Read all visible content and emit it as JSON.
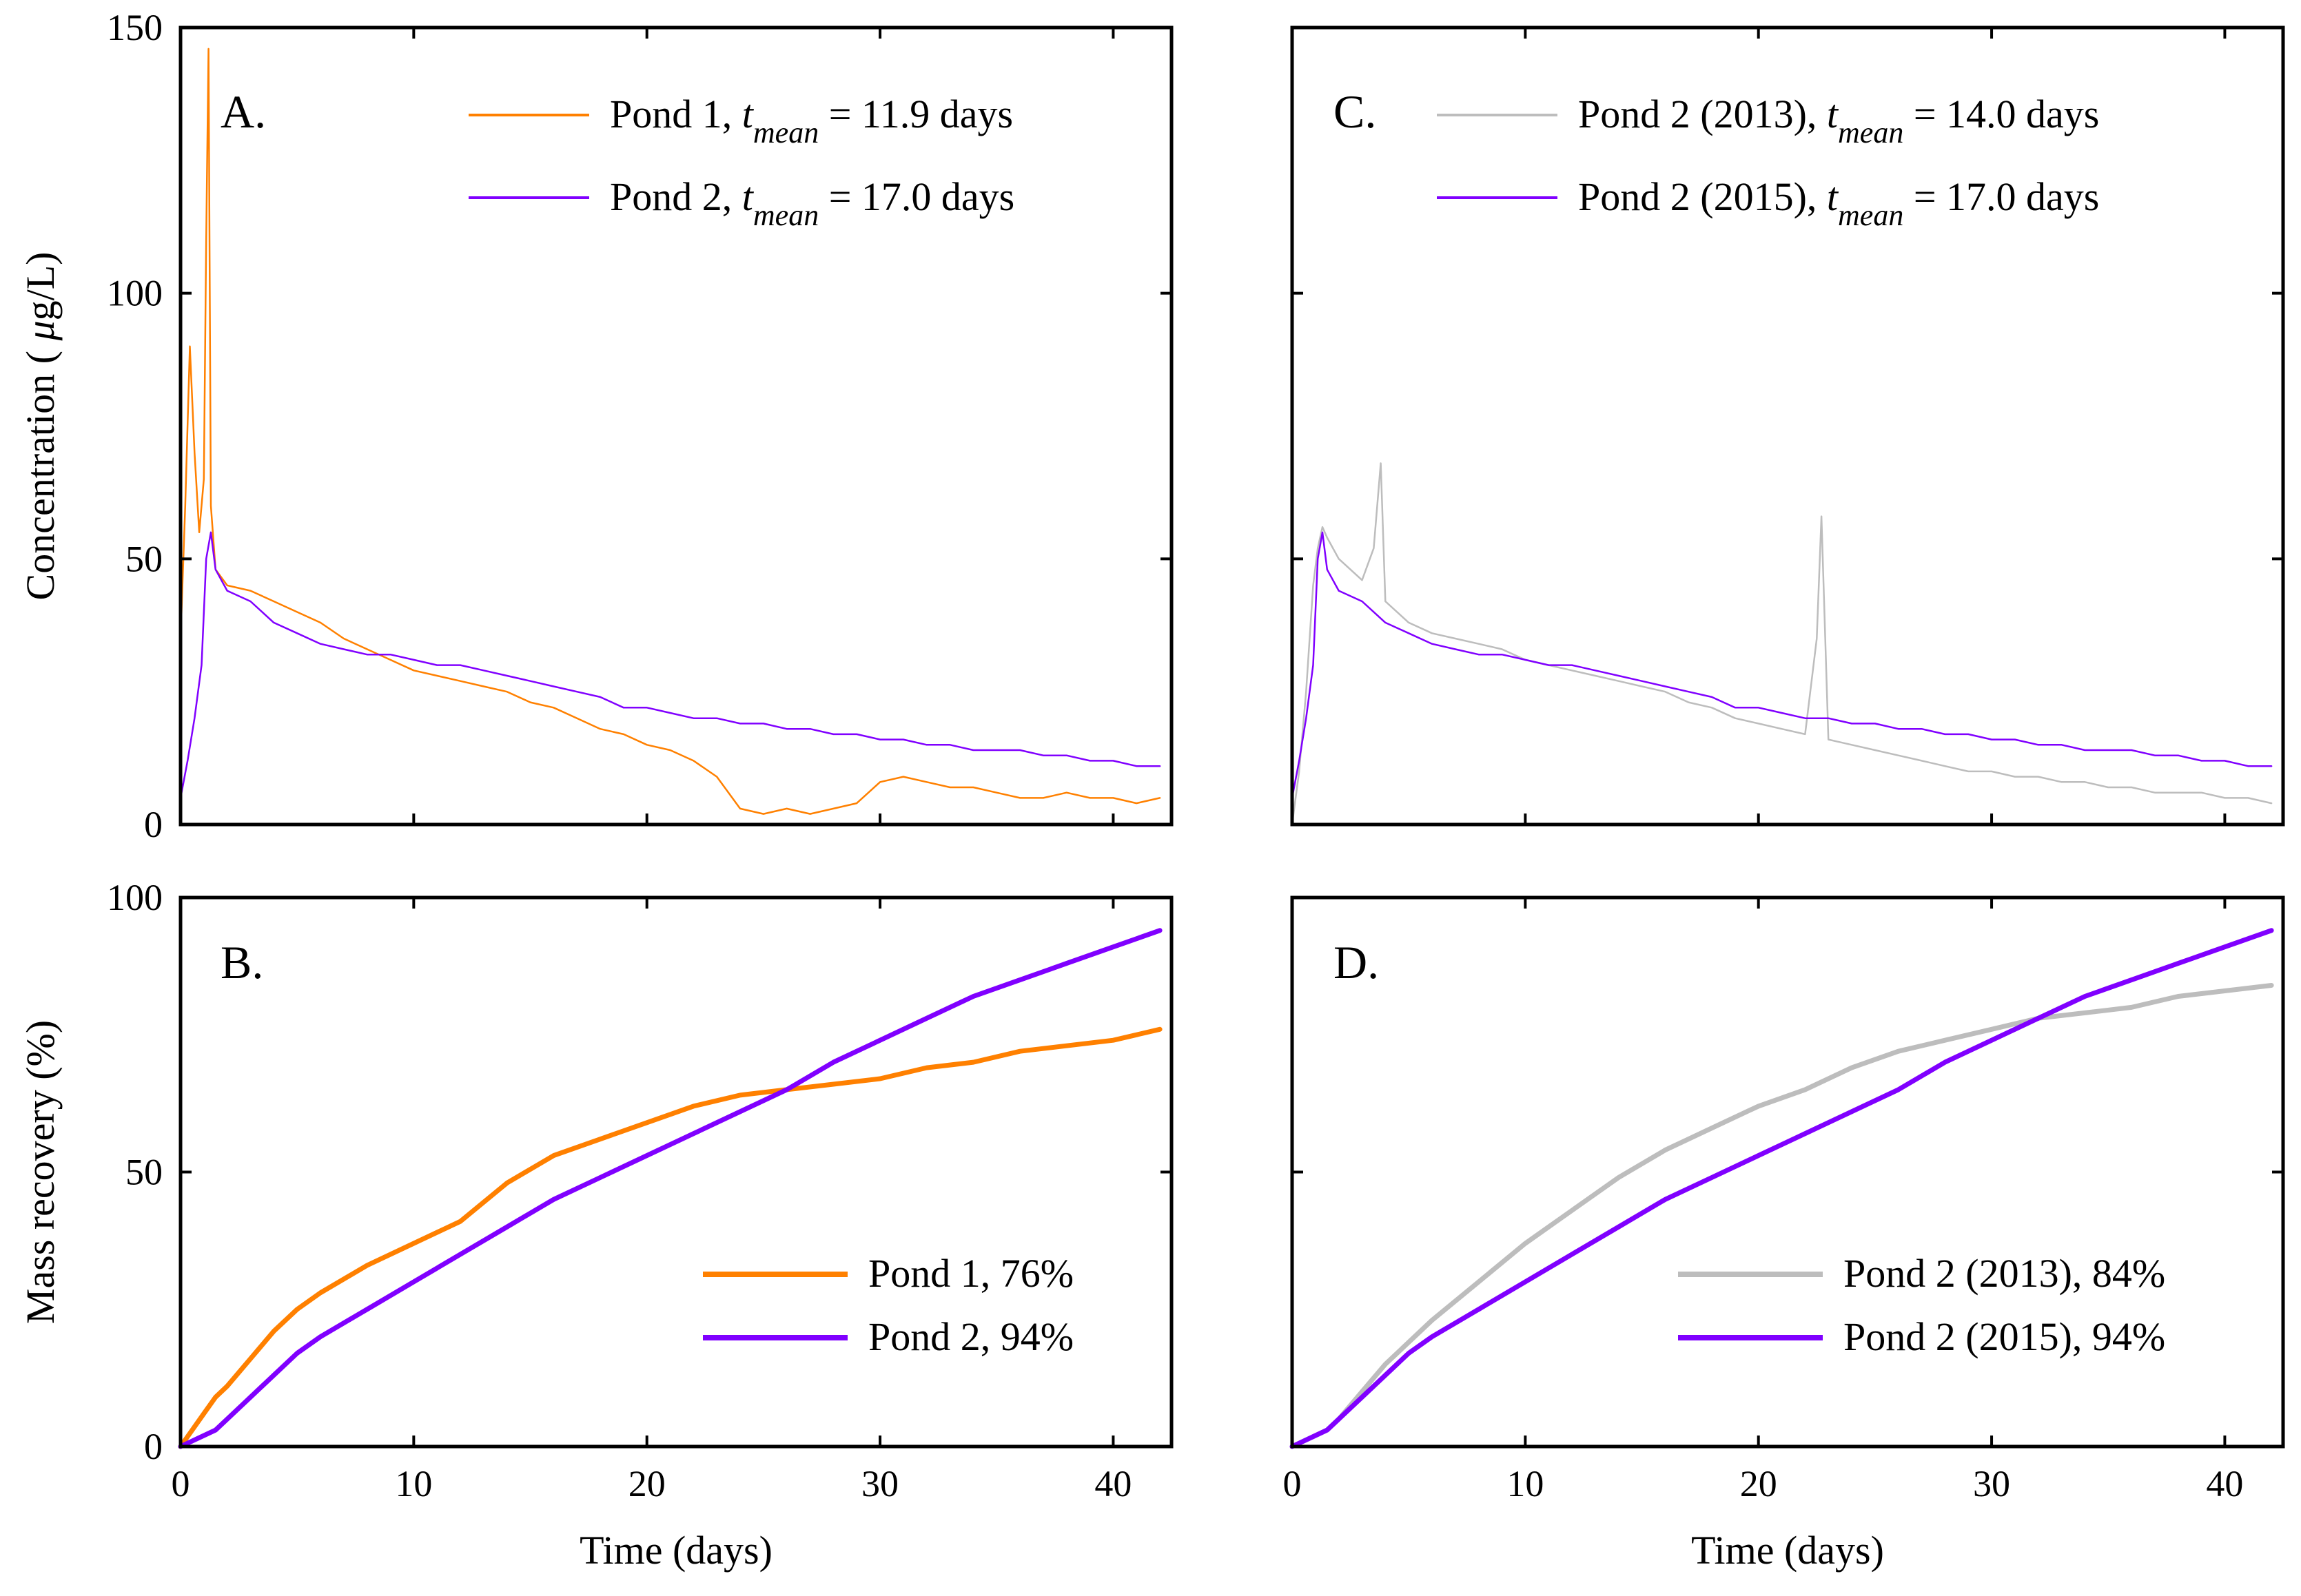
{
  "colors": {
    "pond1": "#FF8000",
    "pond2": "#8000FF",
    "pond2_2013": "#BDBDBD"
  },
  "chart_data": [
    {
      "id": "A",
      "type": "line",
      "panel_label": "A.",
      "xlabel": "",
      "ylabel": "Concentration ( μg/L)",
      "ylabel_mu": "μ",
      "xlim": [
        0,
        42.5
      ],
      "ylim": [
        0,
        150
      ],
      "xticks": [
        0,
        10,
        20,
        30,
        40
      ],
      "yticks": [
        0,
        50,
        100,
        150
      ],
      "xtick_labels_shown": false,
      "series": [
        {
          "name": "Pond 1",
          "legend_prefix": "Pond 1,",
          "tvar": "t",
          "tsub": "mean",
          "legend_suffix": "= 11.9 days",
          "color": "#FF8000",
          "width": 2.5,
          "x": [
            0,
            0.2,
            0.4,
            0.6,
            0.8,
            1.0,
            1.1,
            1.2,
            1.3,
            1.5,
            2,
            3,
            4,
            5,
            6,
            7,
            8,
            9,
            10,
            11,
            12,
            13,
            14,
            15,
            16,
            17,
            18,
            19,
            20,
            21,
            22,
            23,
            24,
            25,
            26,
            27,
            28,
            29,
            30,
            31,
            32,
            33,
            34,
            35,
            36,
            37,
            38,
            39,
            40,
            41,
            42
          ],
          "y": [
            35,
            60,
            90,
            70,
            55,
            65,
            110,
            146,
            60,
            48,
            45,
            44,
            42,
            40,
            38,
            35,
            33,
            31,
            29,
            28,
            27,
            26,
            25,
            23,
            22,
            20,
            18,
            17,
            15,
            14,
            12,
            9,
            3,
            2,
            3,
            2,
            3,
            4,
            8,
            9,
            8,
            7,
            7,
            6,
            5,
            5,
            6,
            5,
            5,
            4,
            5
          ]
        },
        {
          "name": "Pond 2",
          "legend_prefix": "Pond 2,",
          "tvar": "t",
          "tsub": "mean",
          "legend_suffix": "= 17.0 days",
          "color": "#8000FF",
          "width": 2.5,
          "x": [
            0,
            0.3,
            0.6,
            0.9,
            1.1,
            1.3,
            1.5,
            2,
            3,
            4,
            5,
            6,
            7,
            8,
            9,
            10,
            11,
            12,
            13,
            14,
            15,
            16,
            17,
            18,
            19,
            20,
            21,
            22,
            23,
            24,
            25,
            26,
            27,
            28,
            29,
            30,
            31,
            32,
            33,
            34,
            35,
            36,
            37,
            38,
            39,
            40,
            41,
            42
          ],
          "y": [
            5,
            12,
            20,
            30,
            50,
            55,
            48,
            44,
            42,
            38,
            36,
            34,
            33,
            32,
            32,
            31,
            30,
            30,
            29,
            28,
            27,
            26,
            25,
            24,
            22,
            22,
            21,
            20,
            20,
            19,
            19,
            18,
            18,
            17,
            17,
            16,
            16,
            15,
            15,
            14,
            14,
            14,
            13,
            13,
            12,
            12,
            11,
            11
          ]
        }
      ]
    },
    {
      "id": "B",
      "type": "line",
      "panel_label": "B.",
      "xlabel": "Time (days)",
      "ylabel": "Mass recovery (%)",
      "xlim": [
        0,
        42.5
      ],
      "ylim": [
        0,
        100
      ],
      "xticks": [
        0,
        10,
        20,
        30,
        40
      ],
      "yticks": [
        0,
        50,
        100
      ],
      "xtick_labels_shown": true,
      "series": [
        {
          "name": "Pond 1",
          "legend": "Pond 1, 76%",
          "color": "#FF8000",
          "width": 7,
          "x": [
            0,
            0.5,
            1,
            1.5,
            2,
            3,
            4,
            5,
            6,
            8,
            10,
            12,
            14,
            16,
            18,
            20,
            22,
            24,
            26,
            28,
            30,
            32,
            34,
            36,
            38,
            40,
            42
          ],
          "y": [
            0,
            3,
            6,
            9,
            11,
            16,
            21,
            25,
            28,
            33,
            37,
            41,
            48,
            53,
            56,
            59,
            62,
            64,
            65,
            66,
            67,
            69,
            70,
            72,
            73,
            74,
            76
          ]
        },
        {
          "name": "Pond 2",
          "legend": "Pond 2, 94%",
          "color": "#8000FF",
          "width": 7,
          "x": [
            0,
            0.5,
            1,
            1.5,
            2,
            3,
            4,
            5,
            6,
            8,
            10,
            12,
            14,
            16,
            18,
            20,
            22,
            24,
            26,
            28,
            30,
            32,
            34,
            36,
            38,
            40,
            42
          ],
          "y": [
            0,
            1,
            2,
            3,
            5,
            9,
            13,
            17,
            20,
            25,
            30,
            35,
            40,
            45,
            49,
            53,
            57,
            61,
            65,
            70,
            74,
            78,
            82,
            85,
            88,
            91,
            94
          ]
        }
      ]
    },
    {
      "id": "C",
      "type": "line",
      "panel_label": "C.",
      "xlabel": "",
      "ylabel": "",
      "xlim": [
        0,
        42.5
      ],
      "ylim": [
        0,
        150
      ],
      "xticks": [
        0,
        10,
        20,
        30,
        40
      ],
      "yticks": [
        0,
        50,
        100,
        150
      ],
      "xtick_labels_shown": false,
      "series": [
        {
          "name": "Pond 2 (2013)",
          "legend_prefix": "Pond 2 (2013),",
          "tvar": "t",
          "tsub": "mean",
          "legend_suffix": "= 14.0 days",
          "color": "#BDBDBD",
          "width": 2.5,
          "x": [
            0,
            0.3,
            0.6,
            0.9,
            1.1,
            1.3,
            1.5,
            2,
            3,
            3.5,
            3.8,
            4,
            5,
            6,
            7,
            8,
            9,
            10,
            11,
            12,
            13,
            14,
            15,
            16,
            17,
            18,
            19,
            20,
            21,
            22,
            22.5,
            22.7,
            23,
            24,
            25,
            26,
            27,
            28,
            29,
            30,
            31,
            32,
            33,
            34,
            35,
            36,
            37,
            38,
            39,
            40,
            41,
            42
          ],
          "y": [
            0,
            10,
            25,
            45,
            52,
            56,
            54,
            50,
            46,
            52,
            68,
            42,
            38,
            36,
            35,
            34,
            33,
            31,
            30,
            29,
            28,
            27,
            26,
            25,
            23,
            22,
            20,
            19,
            18,
            17,
            35,
            58,
            16,
            15,
            14,
            13,
            12,
            11,
            10,
            10,
            9,
            9,
            8,
            8,
            7,
            7,
            6,
            6,
            6,
            5,
            5,
            4
          ]
        },
        {
          "name": "Pond 2 (2015)",
          "legend_prefix": "Pond 2 (2015),",
          "tvar": "t",
          "tsub": "mean",
          "legend_suffix": "= 17.0 days",
          "color": "#8000FF",
          "width": 2.5,
          "x": [
            0,
            0.3,
            0.6,
            0.9,
            1.1,
            1.3,
            1.5,
            2,
            3,
            4,
            5,
            6,
            7,
            8,
            9,
            10,
            11,
            12,
            13,
            14,
            15,
            16,
            17,
            18,
            19,
            20,
            21,
            22,
            23,
            24,
            25,
            26,
            27,
            28,
            29,
            30,
            31,
            32,
            33,
            34,
            35,
            36,
            37,
            38,
            39,
            40,
            41,
            42
          ],
          "y": [
            5,
            12,
            20,
            30,
            50,
            55,
            48,
            44,
            42,
            38,
            36,
            34,
            33,
            32,
            32,
            31,
            30,
            30,
            29,
            28,
            27,
            26,
            25,
            24,
            22,
            22,
            21,
            20,
            20,
            19,
            19,
            18,
            18,
            17,
            17,
            16,
            16,
            15,
            15,
            14,
            14,
            14,
            13,
            13,
            12,
            12,
            11,
            11
          ]
        }
      ]
    },
    {
      "id": "D",
      "type": "line",
      "panel_label": "D.",
      "xlabel": "Time (days)",
      "ylabel": "",
      "xlim": [
        0,
        42.5
      ],
      "ylim": [
        0,
        100
      ],
      "xticks": [
        0,
        10,
        20,
        30,
        40
      ],
      "yticks": [
        0,
        50,
        100
      ],
      "xtick_labels_shown": true,
      "series": [
        {
          "name": "Pond 2 (2013)",
          "legend": "Pond 2 (2013), 84%",
          "color": "#BDBDBD",
          "width": 7,
          "x": [
            0,
            0.5,
            1,
            1.5,
            2,
            3,
            4,
            5,
            6,
            8,
            10,
            12,
            14,
            16,
            18,
            20,
            22,
            24,
            26,
            28,
            30,
            32,
            34,
            36,
            38,
            40,
            42
          ],
          "y": [
            0,
            1,
            2,
            3,
            5,
            10,
            15,
            19,
            23,
            30,
            37,
            43,
            49,
            54,
            58,
            62,
            65,
            69,
            72,
            74,
            76,
            78,
            79,
            80,
            82,
            83,
            84
          ]
        },
        {
          "name": "Pond 2 (2015)",
          "legend": "Pond 2 (2015), 94%",
          "color": "#8000FF",
          "width": 7,
          "x": [
            0,
            0.5,
            1,
            1.5,
            2,
            3,
            4,
            5,
            6,
            8,
            10,
            12,
            14,
            16,
            18,
            20,
            22,
            24,
            26,
            28,
            30,
            32,
            34,
            36,
            38,
            40,
            42
          ],
          "y": [
            0,
            1,
            2,
            3,
            5,
            9,
            13,
            17,
            20,
            25,
            30,
            35,
            40,
            45,
            49,
            53,
            57,
            61,
            65,
            70,
            74,
            78,
            82,
            85,
            88,
            91,
            94
          ]
        }
      ]
    }
  ]
}
